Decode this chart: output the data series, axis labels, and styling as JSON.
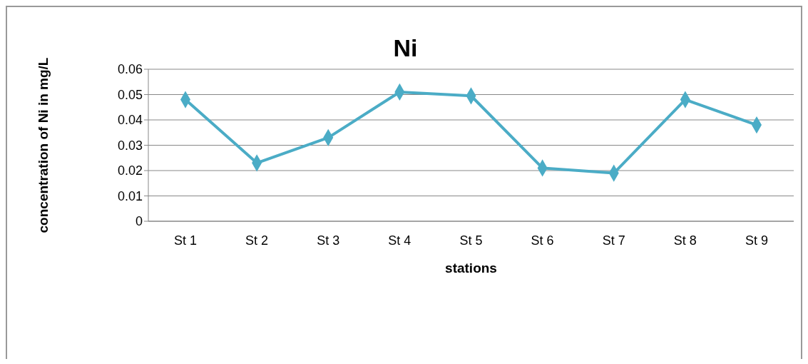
{
  "chart_data": {
    "type": "line",
    "title": "Ni",
    "xlabel": "stations",
    "ylabel": "concentration of Ni in mg/L",
    "categories": [
      "St 1",
      "St 2",
      "St 3",
      "St 4",
      "St 5",
      "St 6",
      "St 7",
      "St 8",
      "St 9"
    ],
    "series": [
      {
        "color": "#4bacc6",
        "values": [
          0.048,
          0.023,
          0.033,
          0.051,
          0.0495,
          0.021,
          0.019,
          0.048,
          0.038
        ]
      }
    ],
    "ylim": [
      0,
      0.06
    ],
    "yticks": [
      0,
      0.01,
      0.02,
      0.03,
      0.04,
      0.05,
      0.06
    ],
    "grid": "y",
    "marker": "diamond",
    "legend": false
  }
}
